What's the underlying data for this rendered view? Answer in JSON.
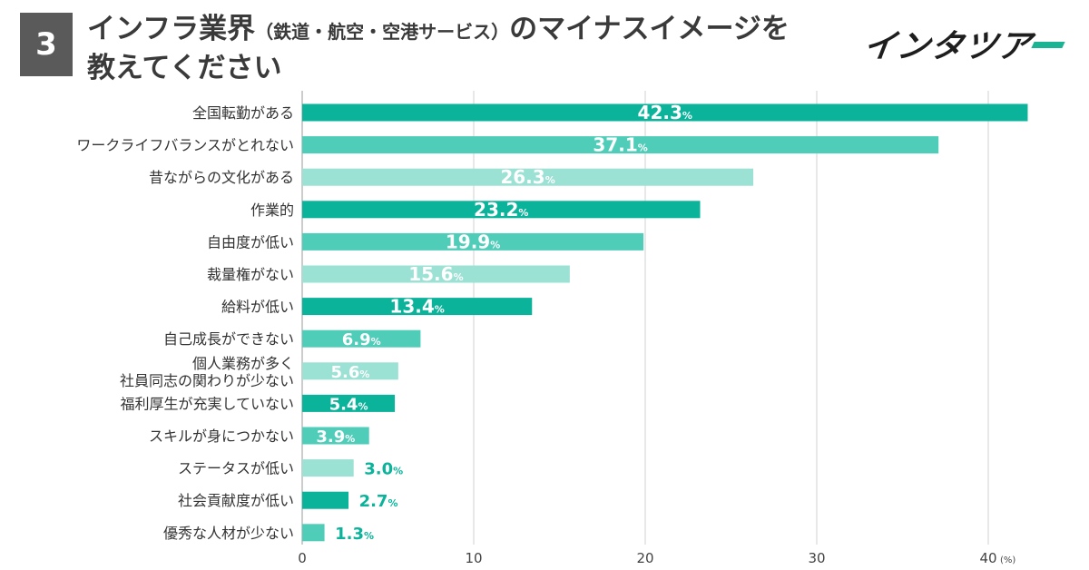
{
  "header": {
    "number": "3",
    "title_main_1": "インフラ業界",
    "title_paren": "（鉄道・航空・空港サービス）",
    "title_main_2": "のマイナスイメージを",
    "title_line2": "教えてください"
  },
  "logo": {
    "text": "インタツアー"
  },
  "chart_data": {
    "type": "bar",
    "orientation": "horizontal",
    "categories": [
      "全国転勤がある",
      "ワークライフバランスがとれない",
      "昔ながらの文化がある",
      "作業的",
      "自由度が低い",
      "裁量権がない",
      "給料が低い",
      "自己成長ができない",
      "個人業務が多く\n社員同志の関わりが少ない",
      "福利厚生が充実していない",
      "スキルが身につかない",
      "ステータスが低い",
      "社会貢献度が低い",
      "優秀な人材が少ない"
    ],
    "values": [
      42.3,
      37.1,
      26.3,
      23.2,
      19.9,
      15.6,
      13.4,
      6.9,
      5.6,
      5.4,
      3.9,
      3.0,
      2.7,
      1.3
    ],
    "value_labels": [
      "42.3",
      "37.1",
      "26.3",
      "23.2",
      "19.9",
      "15.6",
      "13.4",
      "6.9",
      "5.6",
      "5.4",
      "3.9",
      "3.0",
      "2.7",
      "1.3"
    ],
    "value_suffix": "%",
    "xlim": [
      0,
      42.3
    ],
    "xticks": [
      0,
      10,
      20,
      30,
      40
    ],
    "xunit": "(%)",
    "grid": true,
    "colors": [
      "#0bb39a",
      "#4fcdb9",
      "#9be1d4"
    ]
  }
}
